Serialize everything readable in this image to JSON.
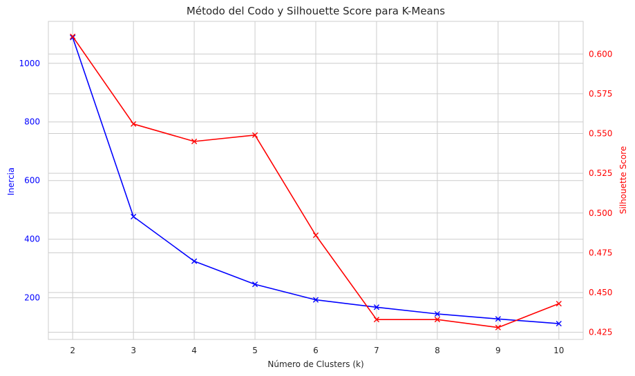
{
  "chart_data": {
    "type": "line",
    "title": "Método del Codo y Silhouette Score para K-Means",
    "xlabel": "Número de Clusters (k)",
    "ylabel_left": "Inercia",
    "ylabel_right": "Silhouette Score",
    "x": [
      2,
      3,
      4,
      5,
      6,
      7,
      8,
      9,
      10
    ],
    "xlim": [
      1.6,
      10.4
    ],
    "ylim_left": [
      58,
      1143
    ],
    "ylim_right": [
      0.4205,
      0.6205
    ],
    "yticks_left": [
      200,
      400,
      600,
      800,
      1000
    ],
    "yticks_right": [
      0.425,
      0.45,
      0.475,
      0.5,
      0.525,
      0.55,
      0.575,
      0.6
    ],
    "ytick_labels_right": [
      "0.425",
      "0.450",
      "0.475",
      "0.500",
      "0.525",
      "0.550",
      "0.575",
      "0.600"
    ],
    "grid": true,
    "series": [
      {
        "axis": "left",
        "color": "#0000ff",
        "marker": "x",
        "values": [
          1088,
          477,
          325,
          246,
          193,
          168,
          145,
          128,
          112
        ]
      },
      {
        "axis": "right",
        "color": "#ff0000",
        "marker": "x",
        "values": [
          0.611,
          0.556,
          0.545,
          0.549,
          0.486,
          0.433,
          0.433,
          0.428,
          0.443
        ]
      }
    ],
    "colors": {
      "left_axis": "#0000ff",
      "right_axis": "#ff0000",
      "grid": "#cccccc",
      "text": "#262626"
    }
  }
}
